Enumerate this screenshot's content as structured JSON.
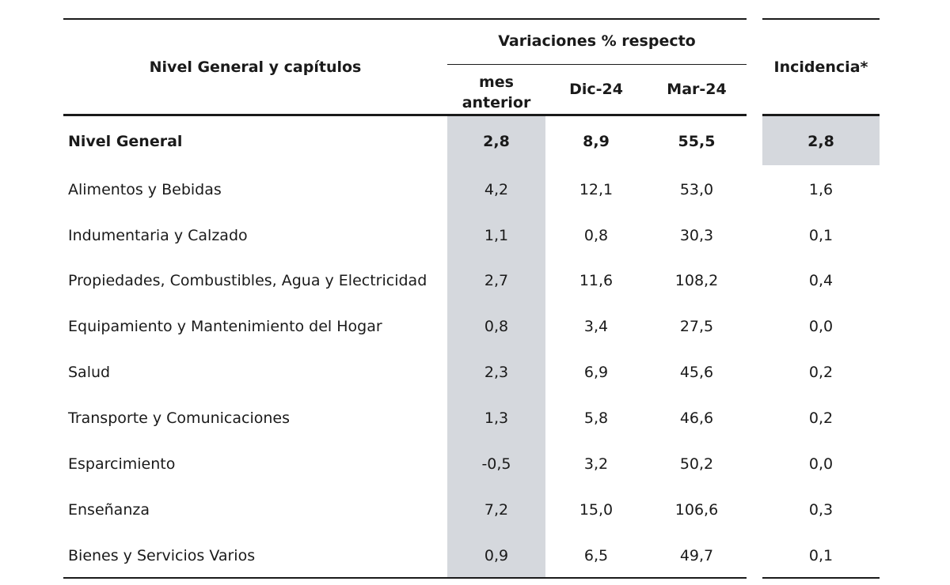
{
  "header": {
    "nivel_general_capitulos": "Nivel General y capítulos",
    "variaciones": "Variaciones % respecto",
    "mes_anterior_line1": "mes",
    "mes_anterior_line2": "anterior",
    "dic24": "Dic-24",
    "mar24": "Mar-24",
    "incidencia": "Incidencia*"
  },
  "rows": [
    {
      "label": "Nivel General",
      "mes": "2,8",
      "dic": "8,9",
      "mar": "55,5",
      "inc": "2,8"
    },
    {
      "label": "Alimentos y Bebidas",
      "mes": "4,2",
      "dic": "12,1",
      "mar": "53,0",
      "inc": "1,6"
    },
    {
      "label": "Indumentaria y Calzado",
      "mes": "1,1",
      "dic": "0,8",
      "mar": "30,3",
      "inc": "0,1"
    },
    {
      "label": "Propiedades, Combustibles, Agua y Electricidad",
      "mes": "2,7",
      "dic": "11,6",
      "mar": "108,2",
      "inc": "0,4"
    },
    {
      "label": "Equipamiento y Mantenimiento del Hogar",
      "mes": "0,8",
      "dic": "3,4",
      "mar": "27,5",
      "inc": "0,0"
    },
    {
      "label": "Salud",
      "mes": "2,3",
      "dic": "6,9",
      "mar": "45,6",
      "inc": "0,2"
    },
    {
      "label": "Transporte y Comunicaciones",
      "mes": "1,3",
      "dic": "5,8",
      "mar": "46,6",
      "inc": "0,2"
    },
    {
      "label": "Esparcimiento",
      "mes": "-0,5",
      "dic": "3,2",
      "mar": "50,2",
      "inc": "0,0"
    },
    {
      "label": "Enseñanza",
      "mes": "7,2",
      "dic": "15,0",
      "mar": "106,6",
      "inc": "0,3"
    },
    {
      "label": "Bienes y Servicios Varios",
      "mes": "0,9",
      "dic": "6,5",
      "mar": "49,7",
      "inc": "0,1"
    }
  ],
  "colors": {
    "shade": "#d5d8dd",
    "rule": "#1a1a1a"
  }
}
